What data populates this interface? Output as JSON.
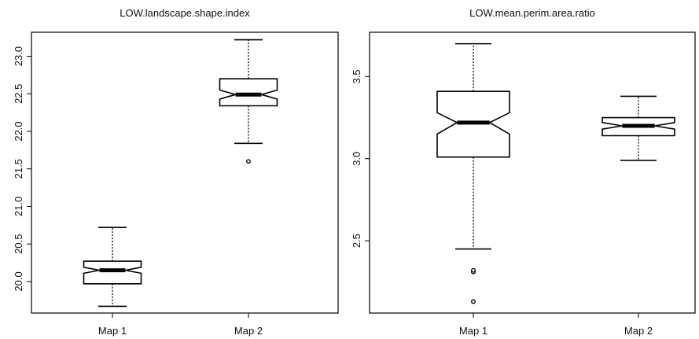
{
  "chart_data": [
    {
      "type": "boxplot",
      "notched": true,
      "title": "LOW.landscape.shape.index",
      "xlabel": "",
      "ylabel": "",
      "categories": [
        "Map 1",
        "Map 2"
      ],
      "ylim": [
        19.58,
        23.32
      ],
      "yticks": [
        "20.0",
        "20.5",
        "21.0",
        "21.5",
        "22.0",
        "22.5",
        "23.0"
      ],
      "boxes": [
        {
          "name": "Map 1",
          "whisker_low": 19.67,
          "q1": 19.97,
          "median": 20.15,
          "q3": 20.27,
          "whisker_high": 20.72,
          "notch_low": 20.11,
          "notch_high": 20.19,
          "outliers": []
        },
        {
          "name": "Map 2",
          "whisker_low": 21.84,
          "q1": 22.34,
          "median": 22.49,
          "q3": 22.7,
          "whisker_high": 23.22,
          "notch_low": 22.43,
          "notch_high": 22.55,
          "outliers": [
            21.6
          ]
        }
      ]
    },
    {
      "type": "boxplot",
      "notched": true,
      "title": "LOW.mean.perim.area.ratio",
      "xlabel": "",
      "ylabel": "",
      "categories": [
        "Map 1",
        "Map 2"
      ],
      "ylim": [
        2.06,
        3.77
      ],
      "yticks": [
        "2.5",
        "3.0",
        "3.5"
      ],
      "boxes": [
        {
          "name": "Map 1",
          "whisker_low": 2.45,
          "q1": 3.01,
          "median": 3.22,
          "q3": 3.41,
          "whisker_high": 3.7,
          "notch_low": 3.15,
          "notch_high": 3.28,
          "outliers": [
            2.31,
            2.32,
            2.13
          ]
        },
        {
          "name": "Map 2",
          "whisker_low": 2.99,
          "q1": 3.14,
          "median": 3.2,
          "q3": 3.25,
          "whisker_high": 3.38,
          "notch_low": 3.18,
          "notch_high": 3.22,
          "outliers": []
        }
      ]
    }
  ]
}
